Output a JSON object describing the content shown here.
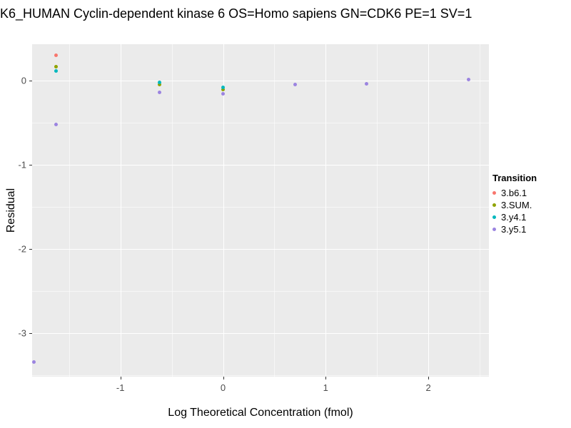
{
  "chart_data": {
    "type": "scatter",
    "title": "K6_HUMAN Cyclin-dependent kinase 6 OS=Homo sapiens GN=CDK6 PE=1 SV=1",
    "xlabel": "Log Theoretical Concentration (fmol)",
    "ylabel": "Residual",
    "xlim": [
      -1.86,
      2.59
    ],
    "ylim": [
      -3.52,
      0.43
    ],
    "x_ticks": [
      -1,
      0,
      1,
      2
    ],
    "y_ticks": [
      0,
      -1,
      -2,
      -3
    ],
    "grid": "on",
    "panel_background": "#EBEBEB",
    "legend_title": "Transition",
    "legend_position": "right",
    "series": [
      {
        "name": "3.b6.1",
        "color": "#F8766D",
        "points": [
          [
            -1.63,
            0.3
          ]
        ]
      },
      {
        "name": "3.SUM.",
        "color": "#8FA300",
        "points": [
          [
            -1.63,
            0.16
          ],
          [
            -0.62,
            -0.05
          ],
          [
            0.0,
            -0.11
          ]
        ]
      },
      {
        "name": "3.y4.1",
        "color": "#00B8BE",
        "points": [
          [
            -1.63,
            0.11
          ],
          [
            -0.62,
            -0.02
          ],
          [
            0.0,
            -0.08
          ]
        ]
      },
      {
        "name": "3.y5.1",
        "color": "#9B84E0",
        "points": [
          [
            -1.84,
            -3.35
          ],
          [
            -1.63,
            -0.52
          ],
          [
            -0.62,
            -0.14
          ],
          [
            0.0,
            -0.16
          ],
          [
            0.7,
            -0.05
          ],
          [
            1.4,
            -0.04
          ],
          [
            2.39,
            0.01
          ]
        ]
      }
    ]
  }
}
